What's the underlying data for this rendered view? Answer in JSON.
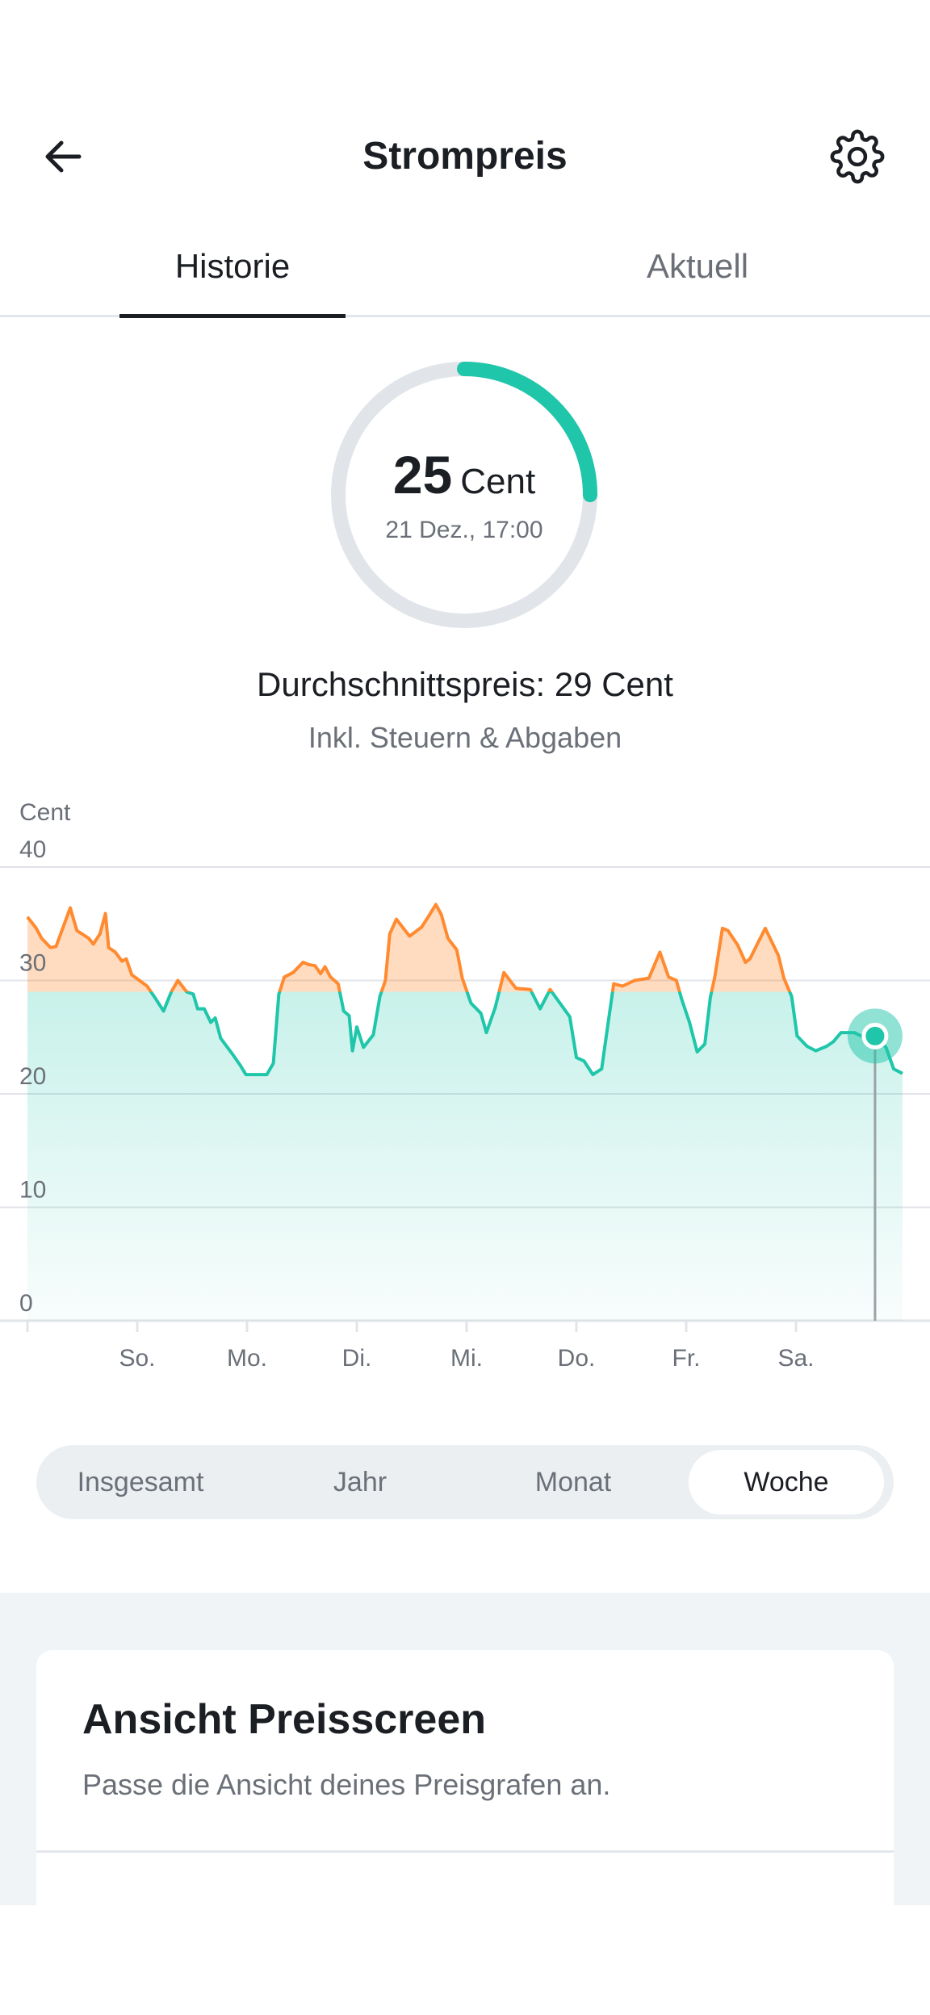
{
  "header": {
    "title": "Strompreis",
    "back_icon": "arrow-left-icon",
    "settings_icon": "gear-icon"
  },
  "tabs": [
    {
      "label": "Historie",
      "active": true
    },
    {
      "label": "Aktuell",
      "active": false
    }
  ],
  "gauge": {
    "value": "25",
    "unit": "Cent",
    "date": "21 Dez., 17:00",
    "fill_fraction": 0.25,
    "color": "#1fc6aa",
    "track_color": "#e1e4e9"
  },
  "average": {
    "text": "Durchschnittspreis: 29 Cent",
    "note": "Inkl. Steuern & Abgaben"
  },
  "chart_data": {
    "type": "area",
    "ylabel": "Cent",
    "ylim": [
      0,
      40
    ],
    "yticks": [
      "0",
      "10",
      "20",
      "30",
      "40"
    ],
    "xticks": [
      "",
      "So.",
      "Mo.",
      "Di.",
      "Mi.",
      "Do.",
      "Fr.",
      "Sa."
    ],
    "xlim_days": [
      0,
      8.2
    ],
    "threshold": 29,
    "above_color": "#ff8a30",
    "below_color": "#1fc6aa",
    "selected_point": [
      7.72,
      25.1
    ],
    "points": [
      [
        0,
        35.6
      ],
      [
        0.08,
        34.6
      ],
      [
        0.13,
        33.7
      ],
      [
        0.21,
        32.9
      ],
      [
        0.26,
        33
      ],
      [
        0.39,
        36.4
      ],
      [
        0.45,
        34.4
      ],
      [
        0.56,
        33.7
      ],
      [
        0.6,
        33.2
      ],
      [
        0.66,
        34.1
      ],
      [
        0.71,
        35.9
      ],
      [
        0.74,
        32.9
      ],
      [
        0.8,
        32.5
      ],
      [
        0.86,
        31.7
      ],
      [
        0.9,
        31.9
      ],
      [
        0.95,
        30.5
      ],
      [
        1.02,
        30
      ],
      [
        1.09,
        29.5
      ],
      [
        1.16,
        28.5
      ],
      [
        1.24,
        27.3
      ],
      [
        1.31,
        29
      ],
      [
        1.37,
        30
      ],
      [
        1.45,
        29
      ],
      [
        1.51,
        28.8
      ],
      [
        1.55,
        27.5
      ],
      [
        1.61,
        27.5
      ],
      [
        1.67,
        26.3
      ],
      [
        1.71,
        26.7
      ],
      [
        1.76,
        24.9
      ],
      [
        1.86,
        23.6
      ],
      [
        1.94,
        22.5
      ],
      [
        1.99,
        21.7
      ],
      [
        2.18,
        21.7
      ],
      [
        2.24,
        22.7
      ],
      [
        2.29,
        28.8
      ],
      [
        2.34,
        30.3
      ],
      [
        2.42,
        30.7
      ],
      [
        2.51,
        31.6
      ],
      [
        2.56,
        31.4
      ],
      [
        2.62,
        31.3
      ],
      [
        2.67,
        30.6
      ],
      [
        2.71,
        31.2
      ],
      [
        2.76,
        30.3
      ],
      [
        2.83,
        29.7
      ],
      [
        2.88,
        27.3
      ],
      [
        2.93,
        26.9
      ],
      [
        2.96,
        23.8
      ],
      [
        3,
        25.9
      ],
      [
        3.06,
        24.1
      ],
      [
        3.15,
        25.2
      ],
      [
        3.21,
        28.6
      ],
      [
        3.26,
        30
      ],
      [
        3.3,
        34.1
      ],
      [
        3.36,
        35.4
      ],
      [
        3.48,
        33.9
      ],
      [
        3.59,
        34.7
      ],
      [
        3.65,
        35.6
      ],
      [
        3.72,
        36.7
      ],
      [
        3.77,
        35.8
      ],
      [
        3.83,
        33.7
      ],
      [
        3.91,
        32.7
      ],
      [
        3.96,
        30.2
      ],
      [
        4.04,
        28
      ],
      [
        4.13,
        27.1
      ],
      [
        4.18,
        25.4
      ],
      [
        4.26,
        27.6
      ],
      [
        4.34,
        30.7
      ],
      [
        4.45,
        29.3
      ],
      [
        4.58,
        29.2
      ],
      [
        4.67,
        27.5
      ],
      [
        4.76,
        29.2
      ],
      [
        4.85,
        28
      ],
      [
        4.94,
        26.8
      ],
      [
        5,
        23.2
      ],
      [
        5.07,
        22.9
      ],
      [
        5.15,
        21.7
      ],
      [
        5.23,
        22.2
      ],
      [
        5.29,
        26.3
      ],
      [
        5.34,
        29.7
      ],
      [
        5.42,
        29.5
      ],
      [
        5.53,
        30
      ],
      [
        5.66,
        30.2
      ],
      [
        5.76,
        32.5
      ],
      [
        5.84,
        30.3
      ],
      [
        5.91,
        30
      ],
      [
        5.96,
        28.3
      ],
      [
        6.03,
        26.3
      ],
      [
        6.1,
        23.7
      ],
      [
        6.17,
        24.4
      ],
      [
        6.22,
        28.5
      ],
      [
        6.26,
        30.3
      ],
      [
        6.33,
        34.6
      ],
      [
        6.38,
        34.4
      ],
      [
        6.47,
        33.1
      ],
      [
        6.54,
        31.6
      ],
      [
        6.58,
        31.9
      ],
      [
        6.72,
        34.6
      ],
      [
        6.77,
        33.6
      ],
      [
        6.84,
        32.2
      ],
      [
        6.89,
        30.2
      ],
      [
        6.96,
        28.6
      ],
      [
        7.01,
        25.1
      ],
      [
        7.1,
        24.2
      ],
      [
        7.18,
        23.8
      ],
      [
        7.28,
        24.2
      ],
      [
        7.34,
        24.6
      ],
      [
        7.41,
        25.4
      ],
      [
        7.53,
        25.4
      ],
      [
        7.64,
        24.9
      ],
      [
        7.72,
        25.1
      ],
      [
        7.82,
        24.1
      ],
      [
        7.89,
        22.2
      ],
      [
        7.97,
        21.8
      ]
    ]
  },
  "period_selector": {
    "options": [
      "Insgesamt",
      "Jahr",
      "Monat",
      "Woche"
    ],
    "selected": "Woche"
  },
  "card": {
    "title": "Ansicht Preisscreen",
    "subtitle": "Passe die Ansicht deines Preisgrafen an."
  }
}
